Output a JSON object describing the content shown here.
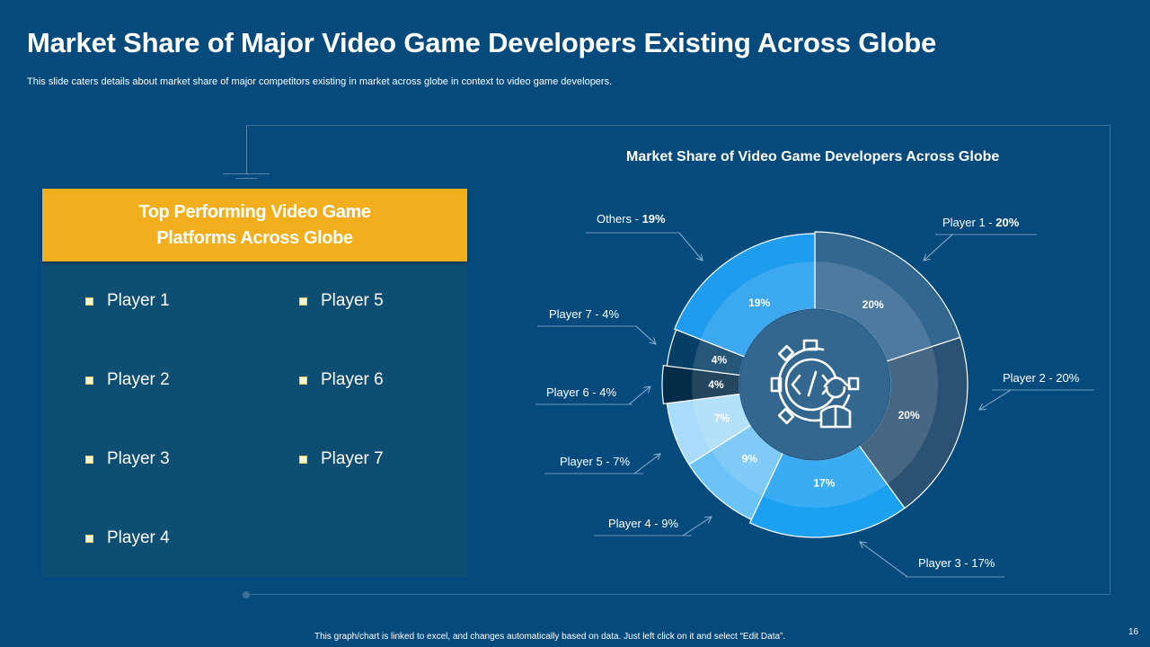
{
  "slide": {
    "title": "Market Share of Major Video Game Developers Existing Across Globe",
    "subtitle": "This slide caters details about market share of major competitors existing in market across globe in context to video game developers.",
    "footer": "This graph/chart is linked to excel, and changes automatically based on data. Just left click on it and select “Edit Data”.",
    "page_number": "16"
  },
  "panel": {
    "heading": "Top Performing Video Game Platforms Across Globe",
    "items": [
      "Player 1",
      "Player 2",
      "Player 3",
      "Player 4",
      "Player 5",
      "Player 6",
      "Player 7"
    ]
  },
  "center_icon": "gear-developer-code-icon",
  "chart_data": {
    "type": "pie",
    "variant": "donut",
    "title": "Market Share of Video Game Developers Across Globe",
    "unit": "%",
    "series": [
      {
        "name": "Player 1",
        "value": 20,
        "data_label": "20%",
        "callout": "Player 1 - ",
        "callout_value": "20%",
        "color": "#336790"
      },
      {
        "name": "Player 2",
        "value": 20,
        "data_label": "20%",
        "callout": "Player 2 - 20%",
        "callout_value": "",
        "color": "#2b5272"
      },
      {
        "name": "Player 3",
        "value": 17,
        "data_label": "17%",
        "callout": "Player 3 - 17%",
        "callout_value": "",
        "color": "#1ca0f2"
      },
      {
        "name": "Player 4",
        "value": 9,
        "data_label": "9%",
        "callout": "Player 4 - 9%",
        "callout_value": "",
        "color": "#6cc3f6"
      },
      {
        "name": "Player 5",
        "value": 7,
        "data_label": "7%",
        "callout": "Player 5 - 7%",
        "callout_value": "",
        "color": "#a9dcfa"
      },
      {
        "name": "Player 6",
        "value": 4,
        "data_label": "4%",
        "callout": "Player 6 - 4%",
        "callout_value": "",
        "color": "#042b47"
      },
      {
        "name": "Player 7",
        "value": 4,
        "data_label": "4%",
        "callout": "Player 7 - 4%",
        "callout_value": "",
        "color": "#063e66"
      },
      {
        "name": "Others",
        "value": 19,
        "data_label": "19%",
        "callout": "Others - ",
        "callout_value": "19%",
        "color": "#1f9cee"
      }
    ]
  }
}
